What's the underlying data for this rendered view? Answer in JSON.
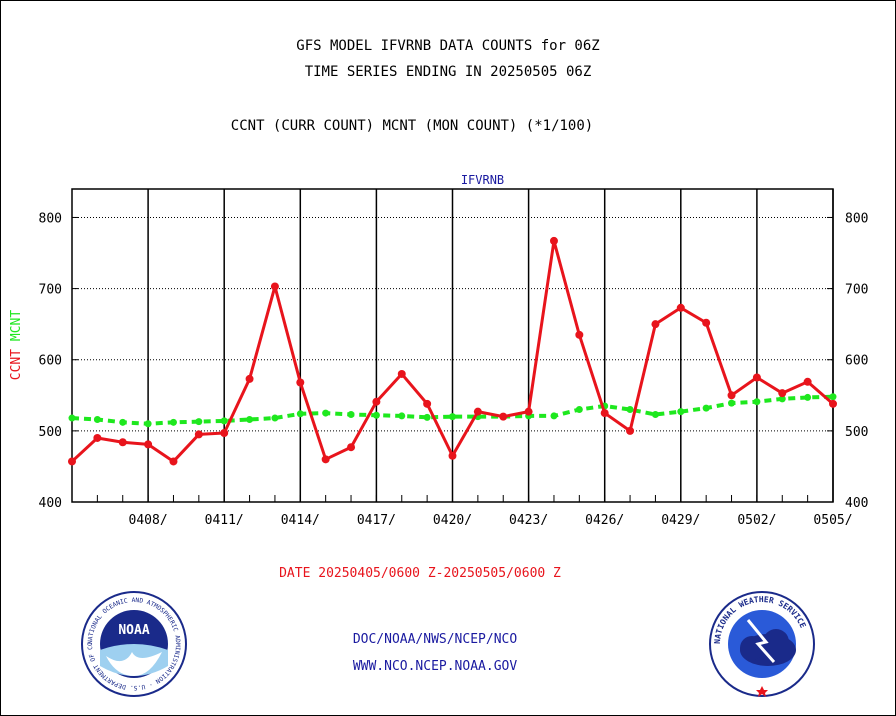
{
  "titles": {
    "line1": "GFS MODEL IFVRNB DATA COUNTS for 06Z",
    "line2": "TIME SERIES ENDING IN 20250505 06Z",
    "line3": "CCNT (CURR COUNT) MCNT (MON COUNT) (*1/100)"
  },
  "footer": {
    "date_range": "DATE 20250405/0600 Z-20250505/0600 Z",
    "link1": "DOC/NOAA/NWS/NCEP/NCO",
    "link2": "WWW.NCO.NCEP.NOAA.GOV"
  },
  "logos": {
    "left": "NOAA",
    "left_ring": "NATIONAL OCEANIC AND ATMOSPHERIC ADMINISTRATION · U.S. DEPARTMENT OF COMMERCE",
    "right_ring": "NATIONAL WEATHER SERVICE"
  },
  "chart_data": {
    "type": "line",
    "title": "IFVRNB",
    "ylabel_left": [
      "CCNT",
      "MCNT"
    ],
    "ylim": [
      400,
      840
    ],
    "yticks": [
      400,
      500,
      600,
      700,
      800
    ],
    "x": [
      "0405",
      "0406",
      "0407",
      "0408",
      "0409",
      "0410",
      "0411",
      "0412",
      "0413",
      "0414",
      "0415",
      "0416",
      "0417",
      "0418",
      "0419",
      "0420",
      "0421",
      "0422",
      "0423",
      "0424",
      "0425",
      "0426",
      "0427",
      "0428",
      "0429",
      "0430",
      "0501",
      "0502",
      "0503",
      "0504",
      "0505"
    ],
    "xtick_labels": [
      "0408/",
      "0411/",
      "0414/",
      "0417/",
      "0420/",
      "0423/",
      "0426/",
      "0429/",
      "0502/",
      "0505/"
    ],
    "xtick_indices": [
      3,
      6,
      9,
      12,
      15,
      18,
      21,
      24,
      27,
      30
    ],
    "grid": true,
    "series": [
      {
        "name": "CCNT",
        "color": "#e8141c",
        "values": [
          457,
          490,
          484,
          481,
          457,
          495,
          497,
          573,
          703,
          568,
          460,
          477,
          541,
          580,
          538,
          465,
          527,
          520,
          527,
          767,
          635,
          525,
          500,
          650,
          673,
          652,
          550,
          575,
          553,
          569,
          538
        ]
      },
      {
        "name": "MCNT",
        "color": "#1ee81e",
        "values": [
          518,
          516,
          512,
          510,
          512,
          513,
          514,
          516,
          518,
          524,
          525,
          523,
          522,
          521,
          519,
          520,
          520,
          520,
          521,
          521,
          530,
          535,
          530,
          523,
          527,
          532,
          539,
          541,
          545,
          547,
          548
        ]
      }
    ]
  }
}
